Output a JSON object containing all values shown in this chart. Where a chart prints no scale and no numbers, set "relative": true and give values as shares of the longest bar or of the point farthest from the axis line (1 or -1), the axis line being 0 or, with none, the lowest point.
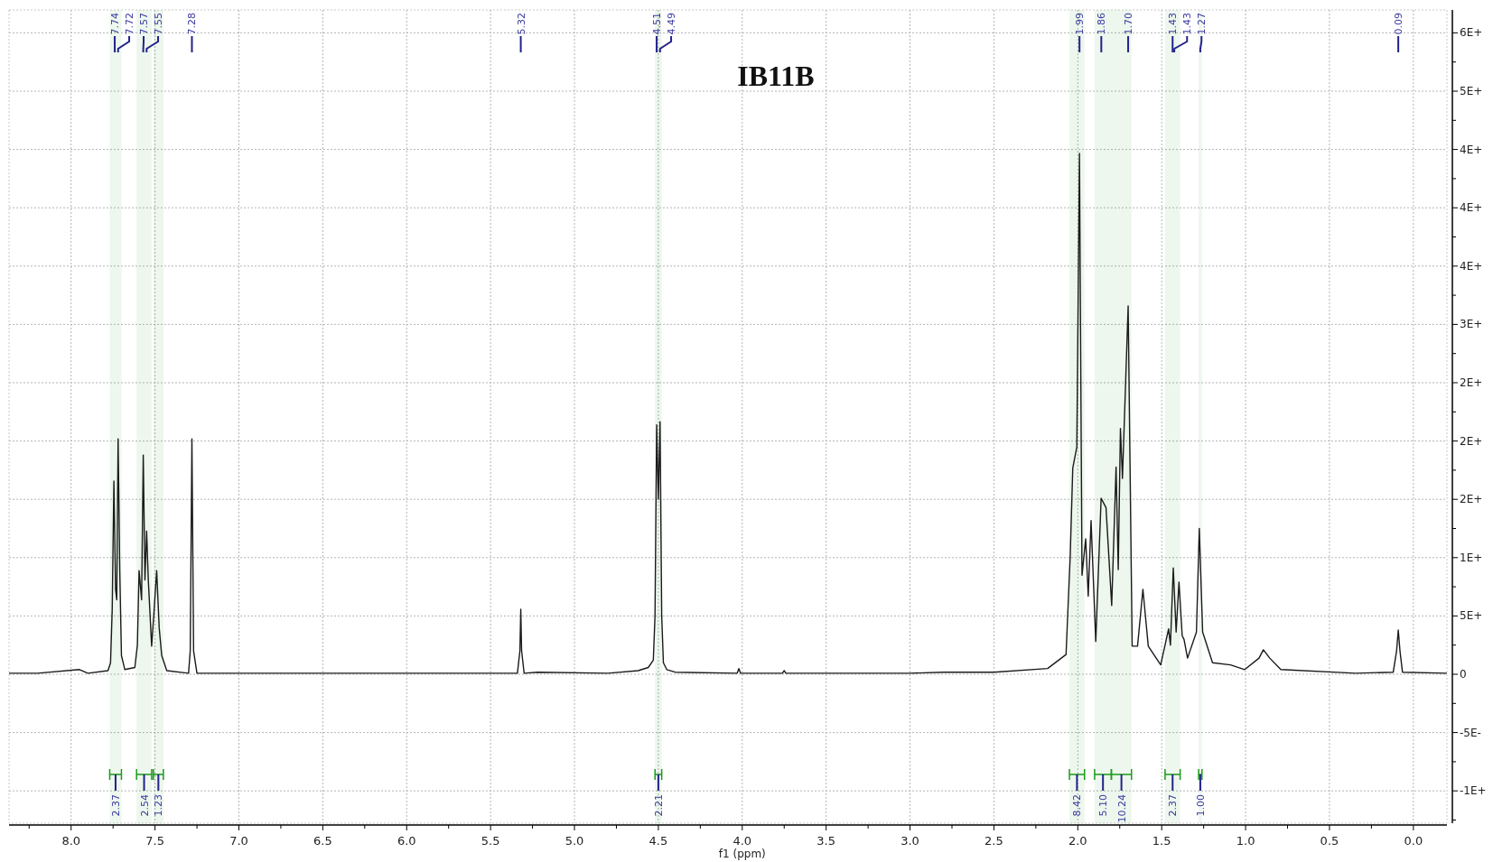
{
  "chart_data": {
    "type": "line",
    "title": "IB11B",
    "xlabel": "f1 (ppm)",
    "x": [
      8.37,
      8.2,
      7.95,
      7.9,
      7.78,
      7.765,
      7.755,
      7.745,
      7.735,
      7.728,
      7.72,
      7.71,
      7.7,
      7.68,
      7.62,
      7.605,
      7.595,
      7.58,
      7.57,
      7.56,
      7.55,
      7.54,
      7.52,
      7.505,
      7.49,
      7.475,
      7.46,
      7.43,
      7.3,
      7.29,
      7.28,
      7.27,
      7.25,
      6.5,
      5.5,
      5.34,
      5.325,
      5.32,
      5.315,
      5.3,
      5.22,
      4.8,
      4.62,
      4.56,
      4.53,
      4.52,
      4.51,
      4.5,
      4.49,
      4.48,
      4.47,
      4.45,
      4.4,
      4.03,
      4.02,
      4.01,
      3.76,
      3.75,
      3.74,
      3.0,
      2.8,
      2.5,
      2.18,
      2.07,
      2.045,
      2.03,
      2.006,
      1.99,
      1.975,
      1.953,
      1.938,
      1.921,
      1.893,
      1.861,
      1.832,
      1.798,
      1.772,
      1.759,
      1.746,
      1.734,
      1.7,
      1.676,
      1.644,
      1.612,
      1.58,
      1.506,
      1.459,
      1.448,
      1.431,
      1.414,
      1.397,
      1.378,
      1.367,
      1.346,
      1.293,
      1.276,
      1.256,
      1.197,
      1.09,
      1.005,
      0.92,
      0.894,
      0.856,
      0.79,
      0.345,
      0.12,
      0.1,
      0.09,
      0.08,
      0.065,
      -0.2
    ],
    "series": [
      {
        "color": "#1a1a1a",
        "values": [
          0.002,
          0.002,
          0.009,
          0.002,
          0.007,
          0.022,
          0.125,
          0.371,
          0.163,
          0.143,
          0.452,
          0.199,
          0.036,
          0.009,
          0.013,
          0.056,
          0.199,
          0.143,
          0.421,
          0.181,
          0.275,
          0.181,
          0.054,
          0.125,
          0.199,
          0.089,
          0.036,
          0.007,
          0.002,
          0.045,
          0.452,
          0.045,
          0.002,
          0.002,
          0.002,
          0.002,
          0.045,
          0.125,
          0.045,
          0.002,
          0.004,
          0.002,
          0.007,
          0.013,
          0.027,
          0.112,
          0.479,
          0.336,
          0.485,
          0.112,
          0.022,
          0.009,
          0.004,
          0.002,
          0.011,
          0.002,
          0.002,
          0.007,
          0.002,
          0.002,
          0.004,
          0.004,
          0.011,
          0.038,
          0.23,
          0.396,
          0.436,
          1,
          0.19,
          0.26,
          0.15,
          0.295,
          0.063,
          0.338,
          0.32,
          0.132,
          0.398,
          0.201,
          0.472,
          0.376,
          0.707,
          0.054,
          0.054,
          0.163,
          0.054,
          0.018,
          0.087,
          0.056,
          0.204,
          0.081,
          0.177,
          0.074,
          0.067,
          0.031,
          0.081,
          0.28,
          0.081,
          0.022,
          0.018,
          0.009,
          0.031,
          0.047,
          0.031,
          0.009,
          0.002,
          0.004,
          0.045,
          0.085,
          0.045,
          0.004,
          0.002
        ]
      }
    ],
    "xlim": [
      8.37,
      -0.2
    ],
    "xticks": [
      {
        "value": 8,
        "label": "8.0"
      },
      {
        "value": 7.5,
        "label": "7.5"
      },
      {
        "value": 7,
        "label": "7.0"
      },
      {
        "value": 6.5,
        "label": "6.5"
      },
      {
        "value": 6,
        "label": "6.0"
      },
      {
        "value": 5.5,
        "label": "5.5"
      },
      {
        "value": 5,
        "label": "5.0"
      },
      {
        "value": 4.5,
        "label": "4.5"
      },
      {
        "value": 4,
        "label": "4.0"
      },
      {
        "value": 3.5,
        "label": "3.5"
      },
      {
        "value": 3,
        "label": "3.0"
      },
      {
        "value": 2.5,
        "label": "2.5"
      },
      {
        "value": 2,
        "label": "2.0"
      },
      {
        "value": 1.5,
        "label": "1.5"
      },
      {
        "value": 1,
        "label": "1.0"
      },
      {
        "value": 0.5,
        "label": "0.5"
      },
      {
        "value": 0,
        "label": "0.0"
      }
    ],
    "relative": true,
    "grid": true,
    "annotations": [
      "6E+",
      "5E+",
      "4E+",
      "4E+",
      "4E+",
      "3E+",
      "2E+",
      "2E+",
      "2E+",
      "1E+",
      "5E+",
      "0",
      "-5E-",
      "-1E+",
      {
        "text": "7.74",
        "x": 7.74
      },
      {
        "text": "7.72",
        "x": 7.72
      },
      {
        "text": "7.57",
        "x": 7.57
      },
      {
        "text": "7.55",
        "x": 7.55
      },
      {
        "text": "7.28",
        "x": 7.28
      },
      {
        "text": "5.32",
        "x": 5.32
      },
      {
        "text": "4.51",
        "x": 4.51
      },
      {
        "text": "4.49",
        "x": 4.49
      },
      {
        "text": "1.99",
        "x": 1.99
      },
      {
        "text": "1.86",
        "x": 1.86
      },
      {
        "text": "1.70",
        "x": 1.7
      },
      {
        "text": "1.43",
        "x": 1.435
      },
      {
        "text": "1.43",
        "x": 1.425
      },
      {
        "text": "1.27",
        "x": 1.27
      },
      {
        "text": "0.09",
        "x": 0.09
      }
    ],
    "bands": [
      {
        "axis": "x",
        "from": 7.77,
        "to": 7.7,
        "label": "2.37",
        "color": "#1a9a1a"
      },
      {
        "axis": "x",
        "from": 7.61,
        "to": 7.52,
        "label": "2.54",
        "color": "#1a9a1a"
      },
      {
        "axis": "x",
        "from": 7.51,
        "to": 7.45,
        "label": "1.23",
        "color": "#1a9a1a"
      },
      {
        "axis": "x",
        "from": 4.52,
        "to": 4.48,
        "label": "2.21",
        "color": "#1a9a1a"
      },
      {
        "axis": "x",
        "from": 2.05,
        "to": 1.96,
        "label": "8.42",
        "color": "#1a9a1a"
      },
      {
        "axis": "x",
        "from": 1.9,
        "to": 1.8,
        "label": "5.10",
        "color": "#1a9a1a"
      },
      {
        "axis": "x",
        "from": 1.8,
        "to": 1.68,
        "label": "10.24",
        "color": "#1a9a1a"
      },
      {
        "axis": "x",
        "from": 1.48,
        "to": 1.39,
        "label": "2.37",
        "color": "#1a9a1a"
      },
      {
        "axis": "x",
        "from": 1.28,
        "to": 1.26,
        "label": "1.00",
        "color": "#1a9a1a"
      }
    ]
  }
}
